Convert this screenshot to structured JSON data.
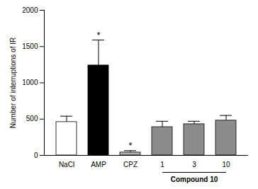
{
  "chart_data": {
    "type": "bar",
    "y_label": "Number of interruptions of IR",
    "categories": [
      "NaCl",
      "AMP",
      "CPZ",
      "1",
      "3",
      "10"
    ],
    "values": [
      460,
      1240,
      40,
      390,
      430,
      480
    ],
    "errors": [
      80,
      350,
      25,
      80,
      40,
      70
    ],
    "colors": [
      "#ffffff",
      "#000000",
      "#b0b0b0",
      "#8c8c8c",
      "#8c8c8c",
      "#8c8c8c"
    ],
    "ylim": [
      0,
      2000
    ],
    "yticks": [
      0,
      500,
      1000,
      1500,
      2000
    ],
    "annotations": [
      {
        "category": "AMP",
        "text": "*"
      },
      {
        "category": "CPZ",
        "text": "*"
      }
    ],
    "group_label": {
      "text": "Compound 10",
      "categories": [
        "1",
        "3",
        "10"
      ]
    }
  }
}
